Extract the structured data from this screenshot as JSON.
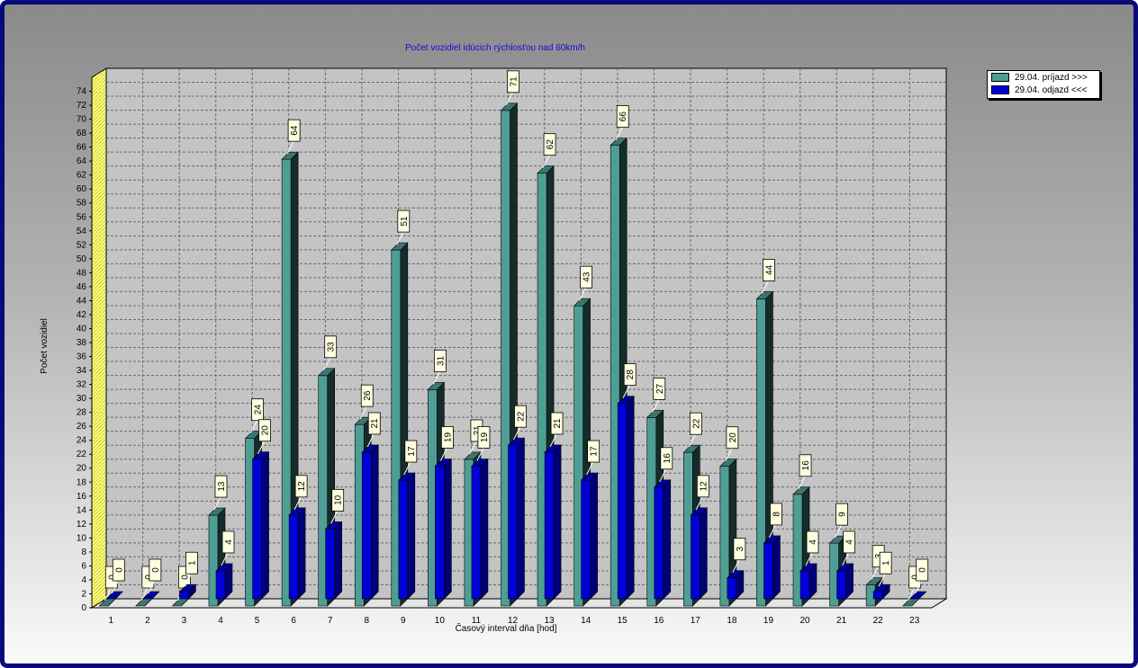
{
  "chart_data": {
    "type": "bar",
    "title": "Počet vozidiel idúcich rýchlosťou nad 60km/h",
    "xlabel": "Časový interval dňa [hod]",
    "ylabel": "Počet vozidiel",
    "ylim": [
      0,
      76
    ],
    "yticks": [
      0,
      2,
      4,
      6,
      8,
      10,
      12,
      14,
      16,
      18,
      20,
      22,
      24,
      26,
      28,
      30,
      32,
      34,
      36,
      38,
      40,
      42,
      44,
      46,
      48,
      50,
      52,
      54,
      56,
      58,
      60,
      62,
      64,
      66,
      68,
      70,
      72,
      74
    ],
    "categories": [
      "1",
      "2",
      "3",
      "4",
      "5",
      "6",
      "7",
      "8",
      "9",
      "10",
      "11",
      "12",
      "13",
      "14",
      "15",
      "16",
      "17",
      "18",
      "19",
      "20",
      "21",
      "22",
      "23"
    ],
    "grid": true,
    "legend_position": "top-right",
    "series": [
      {
        "name": "29.04.  príjazd >>>",
        "color": "#4f9e96",
        "values": [
          0,
          0,
          0,
          13,
          24,
          64,
          33,
          26,
          51,
          31,
          21,
          71,
          62,
          43,
          66,
          27,
          22,
          20,
          44,
          16,
          9,
          3,
          0
        ]
      },
      {
        "name": "29.04.  odjazd <<<",
        "color": "#0000d8",
        "values": [
          0,
          0,
          1,
          4,
          20,
          12,
          10,
          21,
          17,
          19,
          19,
          22,
          21,
          17,
          28,
          16,
          12,
          3,
          8,
          4,
          4,
          1,
          0
        ]
      }
    ]
  }
}
